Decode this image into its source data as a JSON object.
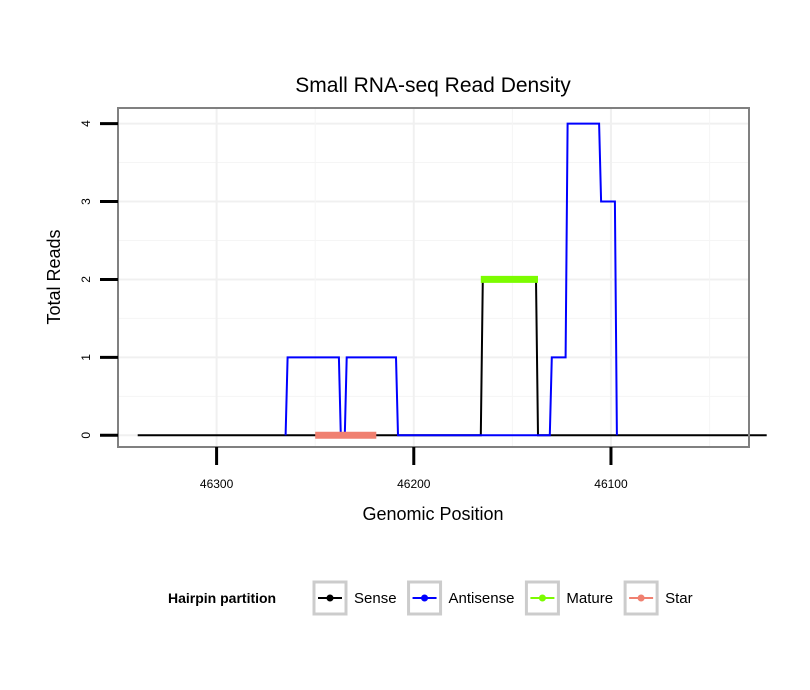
{
  "chart_data": {
    "type": "line",
    "title": "Small RNA-seq Read Density",
    "xlabel": "Genomic Position",
    "ylabel": "Total Reads",
    "x_reversed": true,
    "xlim": [
      46350,
      46030
    ],
    "ylim": [
      -0.15,
      4.2
    ],
    "x_ticks": [
      46300,
      46200,
      46100
    ],
    "x_tick_labels": [
      "46300",
      "46200",
      "46100"
    ],
    "y_ticks": [
      0,
      1,
      2,
      3,
      4
    ],
    "y_tick_labels": [
      "0",
      "1",
      "2",
      "3",
      "4"
    ],
    "grid": true,
    "legend": {
      "title": "Hairpin partition",
      "position": "bottom",
      "entries": [
        {
          "label": "Sense",
          "color": "#000000"
        },
        {
          "label": "Antisense",
          "color": "#0000ff"
        },
        {
          "label": "Mature",
          "color": "#7cfc00"
        },
        {
          "label": "Star",
          "color": "#f08070"
        }
      ]
    },
    "series": [
      {
        "name": "Sense",
        "color": "#000000",
        "points": [
          [
            46340,
            0
          ],
          [
            46166,
            0
          ],
          [
            46165,
            2
          ],
          [
            46138,
            2
          ],
          [
            46137,
            0
          ],
          [
            46021,
            0
          ]
        ]
      },
      {
        "name": "Antisense",
        "color": "#0000ff",
        "points": [
          [
            46265,
            0
          ],
          [
            46264,
            1
          ],
          [
            46238,
            1
          ],
          [
            46237,
            0
          ],
          [
            46235,
            0
          ],
          [
            46234,
            1
          ],
          [
            46209,
            1
          ],
          [
            46208,
            0
          ],
          [
            46166,
            0
          ],
          [
            46131,
            0
          ],
          [
            46130,
            1
          ],
          [
            46123,
            1
          ],
          [
            46122,
            4
          ],
          [
            46106,
            4
          ],
          [
            46105,
            3
          ],
          [
            46098,
            3
          ],
          [
            46097,
            0
          ]
        ]
      },
      {
        "name": "Mature",
        "color": "#7cfc00",
        "points": [
          [
            46166,
            2
          ],
          [
            46137,
            2
          ]
        ]
      },
      {
        "name": "Star",
        "color": "#f08070",
        "points": [
          [
            46250,
            0
          ],
          [
            46219,
            0
          ]
        ]
      }
    ]
  }
}
